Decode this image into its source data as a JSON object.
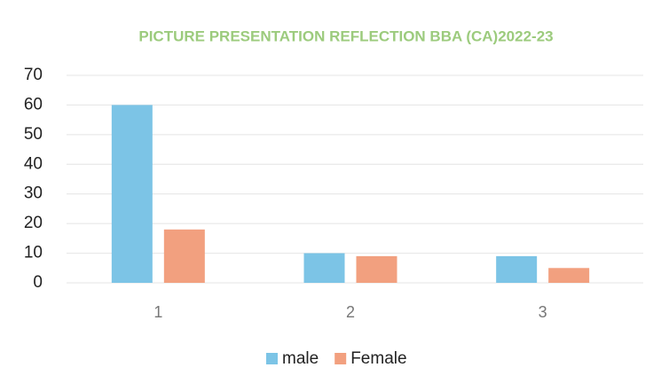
{
  "chart_data": {
    "type": "bar",
    "title": "PICTURE PRESENTATION REFLECTION BBA (CA)2022-23",
    "categories": [
      "1",
      "2",
      "3"
    ],
    "series": [
      {
        "name": "male",
        "color": "#7cc4e6",
        "values": [
          60,
          10,
          9
        ]
      },
      {
        "name": "Female",
        "color": "#f2a07f",
        "values": [
          18,
          9,
          5
        ]
      }
    ],
    "ylim": [
      0,
      70
    ],
    "yticks": [
      0,
      10,
      20,
      30,
      40,
      50,
      60,
      70
    ],
    "grid": true,
    "legend": "bottom"
  }
}
